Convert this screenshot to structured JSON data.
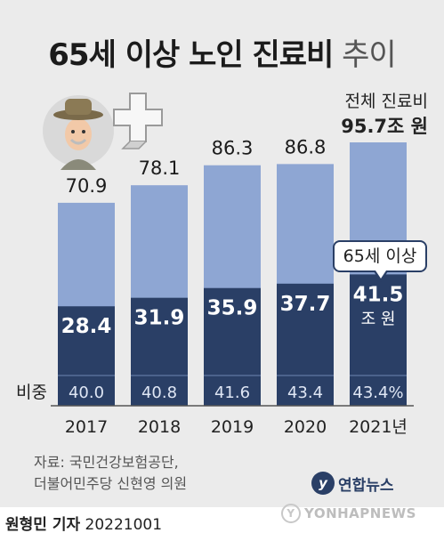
{
  "title": {
    "bold": "65세 이상 노인 진료비",
    "light": "추이"
  },
  "total_label": {
    "line1": "전체 진료비",
    "line2": "95.7조 원"
  },
  "callout": "65세 이상",
  "ratio_label": "비중",
  "unit_label": "조 원",
  "source": {
    "line1": "자료: 국민건강보험공단,",
    "line2": "더불어민주당 신현영 의원"
  },
  "logo": {
    "mark": "y",
    "name": "연합뉴스"
  },
  "watermark": "YONHAPNEWS",
  "byline": {
    "reporter": "원형민 기자",
    "date": "20221001"
  },
  "colors": {
    "total": "#8ea6d3",
    "elderly": "#2a3f66",
    "background": "#ebebeb"
  },
  "chart_data": {
    "type": "bar",
    "categories": [
      "2017",
      "2018",
      "2019",
      "2020",
      "2021년"
    ],
    "total_labels": [
      "70.9",
      "78.1",
      "86.3",
      "86.8",
      ""
    ],
    "elderly_labels": [
      "28.4",
      "31.9",
      "35.9",
      "37.7",
      "41.5"
    ],
    "ratio_labels": [
      "40.0",
      "40.8",
      "41.6",
      "43.4",
      "43.4%"
    ],
    "series": [
      {
        "name": "전체 진료비",
        "values": [
          70.9,
          78.1,
          86.3,
          86.8,
          95.7
        ]
      },
      {
        "name": "65세 이상",
        "values": [
          28.4,
          31.9,
          35.9,
          37.7,
          41.5
        ]
      }
    ],
    "ratio": [
      40.0,
      40.8,
      41.6,
      43.4,
      43.4
    ],
    "ylim": [
      0,
      95.7
    ]
  }
}
